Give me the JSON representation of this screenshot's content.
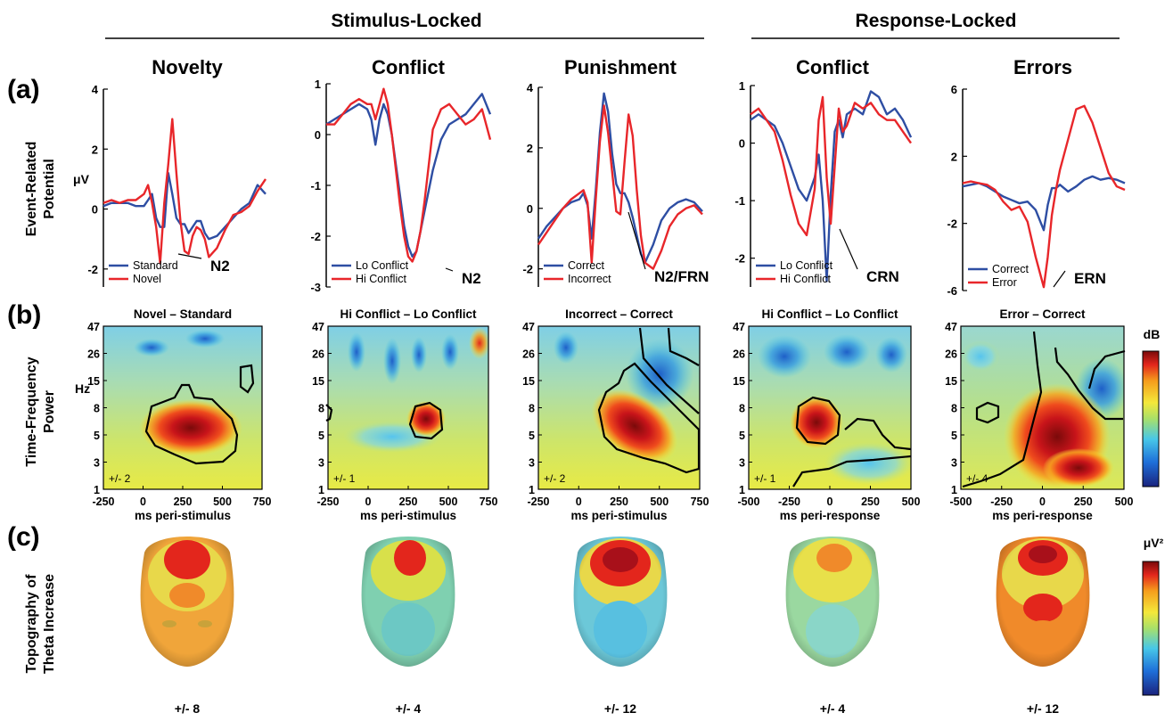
{
  "figure": {
    "group_headers": [
      "Stimulus-Locked",
      "Response-Locked"
    ],
    "row_letters": [
      "(a)",
      "(b)",
      "(c)"
    ],
    "row_titles": [
      [
        "Event-Related",
        "Potential"
      ],
      [
        "Time-Frequency",
        "Power"
      ],
      [
        "Topography of",
        "Theta Increase"
      ]
    ],
    "column_titles": [
      "Novelty",
      "Conflict",
      "Punishment",
      "Conflict",
      "Errors"
    ],
    "erp_unit": "μV",
    "tf_unit": "Hz",
    "tf_colorbar_label": "dB",
    "topo_colorbar_label": "μV²",
    "colors": {
      "blue_series": "#2e4ea3",
      "red_series": "#e8262a",
      "colormap": [
        "#1a237e",
        "#1e6fd9",
        "#48c7e8",
        "#a8e06a",
        "#f4e83a",
        "#f59d1c",
        "#e3261c",
        "#7a0a0a"
      ]
    }
  },
  "chart_data": [
    {
      "type": "line",
      "panel": "erp-novelty",
      "x": [
        -250,
        -200,
        -150,
        -100,
        -50,
        0,
        25,
        50,
        75,
        100,
        125,
        150,
        175,
        200,
        225,
        250,
        275,
        300,
        325,
        350,
        375,
        400,
        450,
        500,
        550,
        600,
        650,
        700,
        750
      ],
      "series": [
        {
          "name": "Standard",
          "values": [
            0.1,
            0.2,
            0.2,
            0.2,
            0.1,
            0.1,
            0.3,
            0.5,
            -0.3,
            -0.6,
            -0.6,
            1.2,
            0.5,
            -0.3,
            -0.5,
            -0.5,
            -0.8,
            -0.6,
            -0.4,
            -0.4,
            -0.8,
            -1.0,
            -0.9,
            -0.6,
            -0.3,
            0.0,
            0.2,
            0.8,
            0.5
          ]
        },
        {
          "name": "Novel",
          "values": [
            0.2,
            0.3,
            0.2,
            0.3,
            0.3,
            0.5,
            0.8,
            0.2,
            -0.6,
            -1.8,
            0.2,
            1.5,
            3.0,
            1.2,
            -0.4,
            -1.4,
            -1.5,
            -0.9,
            -0.6,
            -0.7,
            -1.0,
            -1.6,
            -1.3,
            -0.7,
            -0.2,
            -0.1,
            0.1,
            0.6,
            1.0
          ]
        }
      ],
      "yticks": [
        -2,
        0,
        2,
        4
      ],
      "ylim": [
        -2.6,
        4
      ],
      "annotation": "N2"
    },
    {
      "type": "line",
      "panel": "erp-conflict-stim",
      "x": [
        -250,
        -200,
        -150,
        -100,
        -50,
        0,
        25,
        50,
        75,
        100,
        125,
        150,
        175,
        200,
        225,
        250,
        275,
        300,
        325,
        350,
        375,
        400,
        450,
        500,
        550,
        600,
        650,
        700,
        750
      ],
      "series": [
        {
          "name": "Lo Conflict",
          "values": [
            0.2,
            0.3,
            0.4,
            0.5,
            0.6,
            0.5,
            0.3,
            -0.2,
            0.3,
            0.6,
            0.4,
            0.0,
            -0.6,
            -1.2,
            -1.8,
            -2.2,
            -2.4,
            -2.3,
            -1.9,
            -1.5,
            -1.1,
            -0.7,
            -0.1,
            0.2,
            0.3,
            0.4,
            0.6,
            0.8,
            0.4
          ]
        },
        {
          "name": "Hi Conflict",
          "values": [
            0.2,
            0.2,
            0.4,
            0.6,
            0.7,
            0.6,
            0.6,
            0.3,
            0.6,
            0.9,
            0.6,
            0.0,
            -0.7,
            -1.4,
            -2.0,
            -2.4,
            -2.5,
            -2.3,
            -1.9,
            -1.3,
            -0.6,
            0.1,
            0.5,
            0.6,
            0.4,
            0.2,
            0.3,
            0.5,
            -0.1
          ]
        }
      ],
      "yticks": [
        -3,
        -2,
        -1,
        0,
        1
      ],
      "ylim": [
        -3,
        1
      ],
      "annotation": "N2"
    },
    {
      "type": "line",
      "panel": "erp-punishment",
      "x": [
        -250,
        -200,
        -150,
        -100,
        -50,
        0,
        25,
        50,
        75,
        100,
        125,
        150,
        175,
        200,
        225,
        250,
        275,
        300,
        325,
        350,
        375,
        400,
        450,
        500,
        550,
        600,
        650,
        700,
        750
      ],
      "series": [
        {
          "name": "Correct",
          "values": [
            -1.0,
            -0.6,
            -0.3,
            0.0,
            0.2,
            0.3,
            0.5,
            0.1,
            -1.0,
            0.6,
            2.5,
            3.8,
            3.2,
            1.8,
            0.8,
            0.5,
            0.5,
            0.2,
            -0.3,
            -0.9,
            -1.5,
            -1.8,
            -1.2,
            -0.4,
            0.0,
            0.2,
            0.3,
            0.2,
            -0.1
          ]
        },
        {
          "name": "Incorrect",
          "values": [
            -1.2,
            -0.8,
            -0.4,
            0.0,
            0.3,
            0.5,
            0.6,
            0.2,
            -1.8,
            0.3,
            2.2,
            3.4,
            2.5,
            1.2,
            -0.1,
            -0.2,
            1.5,
            3.1,
            2.4,
            0.6,
            -0.9,
            -1.8,
            -2.0,
            -1.4,
            -0.6,
            -0.2,
            0.0,
            0.1,
            -0.2
          ]
        }
      ],
      "yticks": [
        -2,
        0,
        2,
        4
      ],
      "ylim": [
        -2.6,
        4
      ],
      "annotation": "N2/FRN"
    },
    {
      "type": "line",
      "panel": "erp-conflict-resp",
      "x": [
        -500,
        -450,
        -400,
        -350,
        -300,
        -250,
        -200,
        -150,
        -100,
        -75,
        -50,
        -25,
        0,
        25,
        50,
        75,
        100,
        150,
        200,
        250,
        300,
        350,
        400,
        450,
        500
      ],
      "series": [
        {
          "name": "Lo Conflict",
          "values": [
            0.4,
            0.5,
            0.4,
            0.3,
            0.0,
            -0.4,
            -0.8,
            -1.0,
            -0.6,
            -0.2,
            -1.0,
            -2.4,
            -0.9,
            0.2,
            0.4,
            0.1,
            0.5,
            0.6,
            0.5,
            0.9,
            0.8,
            0.5,
            0.6,
            0.4,
            0.1
          ]
        },
        {
          "name": "Hi Conflict",
          "values": [
            0.5,
            0.6,
            0.4,
            0.2,
            -0.3,
            -0.9,
            -1.4,
            -1.6,
            -0.8,
            0.4,
            0.8,
            -0.6,
            -1.4,
            -0.4,
            0.6,
            0.2,
            0.3,
            0.7,
            0.6,
            0.7,
            0.5,
            0.4,
            0.4,
            0.2,
            0.0
          ]
        }
      ],
      "yticks": [
        -2,
        -1,
        0,
        1
      ],
      "ylim": [
        -2.5,
        1
      ],
      "annotation": "CRN"
    },
    {
      "type": "line",
      "panel": "erp-errors",
      "x": [
        -500,
        -450,
        -400,
        -350,
        -300,
        -250,
        -200,
        -150,
        -100,
        -50,
        0,
        25,
        50,
        75,
        100,
        150,
        200,
        250,
        300,
        350,
        400,
        450,
        500
      ],
      "series": [
        {
          "name": "Correct",
          "values": [
            0.2,
            0.3,
            0.4,
            0.2,
            -0.1,
            -0.4,
            -0.6,
            -0.8,
            -0.7,
            -1.2,
            -2.4,
            -0.9,
            0.1,
            0.1,
            0.3,
            -0.1,
            0.2,
            0.6,
            0.8,
            0.6,
            0.7,
            0.6,
            0.4
          ]
        },
        {
          "name": "Error",
          "values": [
            0.4,
            0.5,
            0.4,
            0.3,
            0.0,
            -0.7,
            -1.2,
            -1.0,
            -1.9,
            -4.0,
            -5.8,
            -4.0,
            -1.5,
            0.0,
            1.2,
            3.0,
            4.8,
            5.0,
            4.0,
            2.5,
            1.0,
            0.2,
            0.0
          ]
        }
      ],
      "yticks": [
        -6,
        -2,
        2,
        6
      ],
      "ylim": [
        -6,
        6
      ],
      "annotation": "ERN"
    },
    {
      "type": "heatmap",
      "panel": "tf-novelty",
      "title": "Novel – Standard",
      "xlabel": "ms peri-stimulus",
      "xticks": [
        -250,
        0,
        250,
        500,
        750
      ],
      "yticks": [
        1,
        3,
        5,
        8,
        15,
        26,
        47
      ],
      "range_label": "+/- 2"
    },
    {
      "type": "heatmap",
      "panel": "tf-conflict-stim",
      "title": "Hi Conflict – Lo Conflict",
      "xlabel": "ms peri-stimulus",
      "xticks": [
        -250,
        0,
        250,
        500,
        750
      ],
      "yticks": [
        1,
        3,
        5,
        8,
        15,
        26,
        47
      ],
      "range_label": "+/- 1"
    },
    {
      "type": "heatmap",
      "panel": "tf-punishment",
      "title": "Incorrect – Correct",
      "xlabel": "ms peri-stimulus",
      "xticks": [
        -250,
        0,
        250,
        500,
        750
      ],
      "yticks": [
        1,
        3,
        5,
        8,
        15,
        26,
        47
      ],
      "range_label": "+/- 2"
    },
    {
      "type": "heatmap",
      "panel": "tf-conflict-resp",
      "title": "Hi Conflict – Lo Conflict",
      "xlabel": "ms peri-response",
      "xticks": [
        -500,
        -250,
        0,
        250,
        500
      ],
      "yticks": [
        1,
        3,
        5,
        8,
        15,
        26,
        47
      ],
      "range_label": "+/- 1"
    },
    {
      "type": "heatmap",
      "panel": "tf-errors",
      "title": "Error – Correct",
      "xlabel": "ms peri-response",
      "xticks": [
        -500,
        -250,
        0,
        250,
        500
      ],
      "yticks": [
        1,
        3,
        5,
        8,
        15,
        26,
        47
      ],
      "range_label": "+/- 4"
    }
  ],
  "topography": {
    "range_labels": [
      "+/- 8",
      "+/- 4",
      "+/- 12",
      "+/- 4",
      "+/- 12"
    ]
  }
}
